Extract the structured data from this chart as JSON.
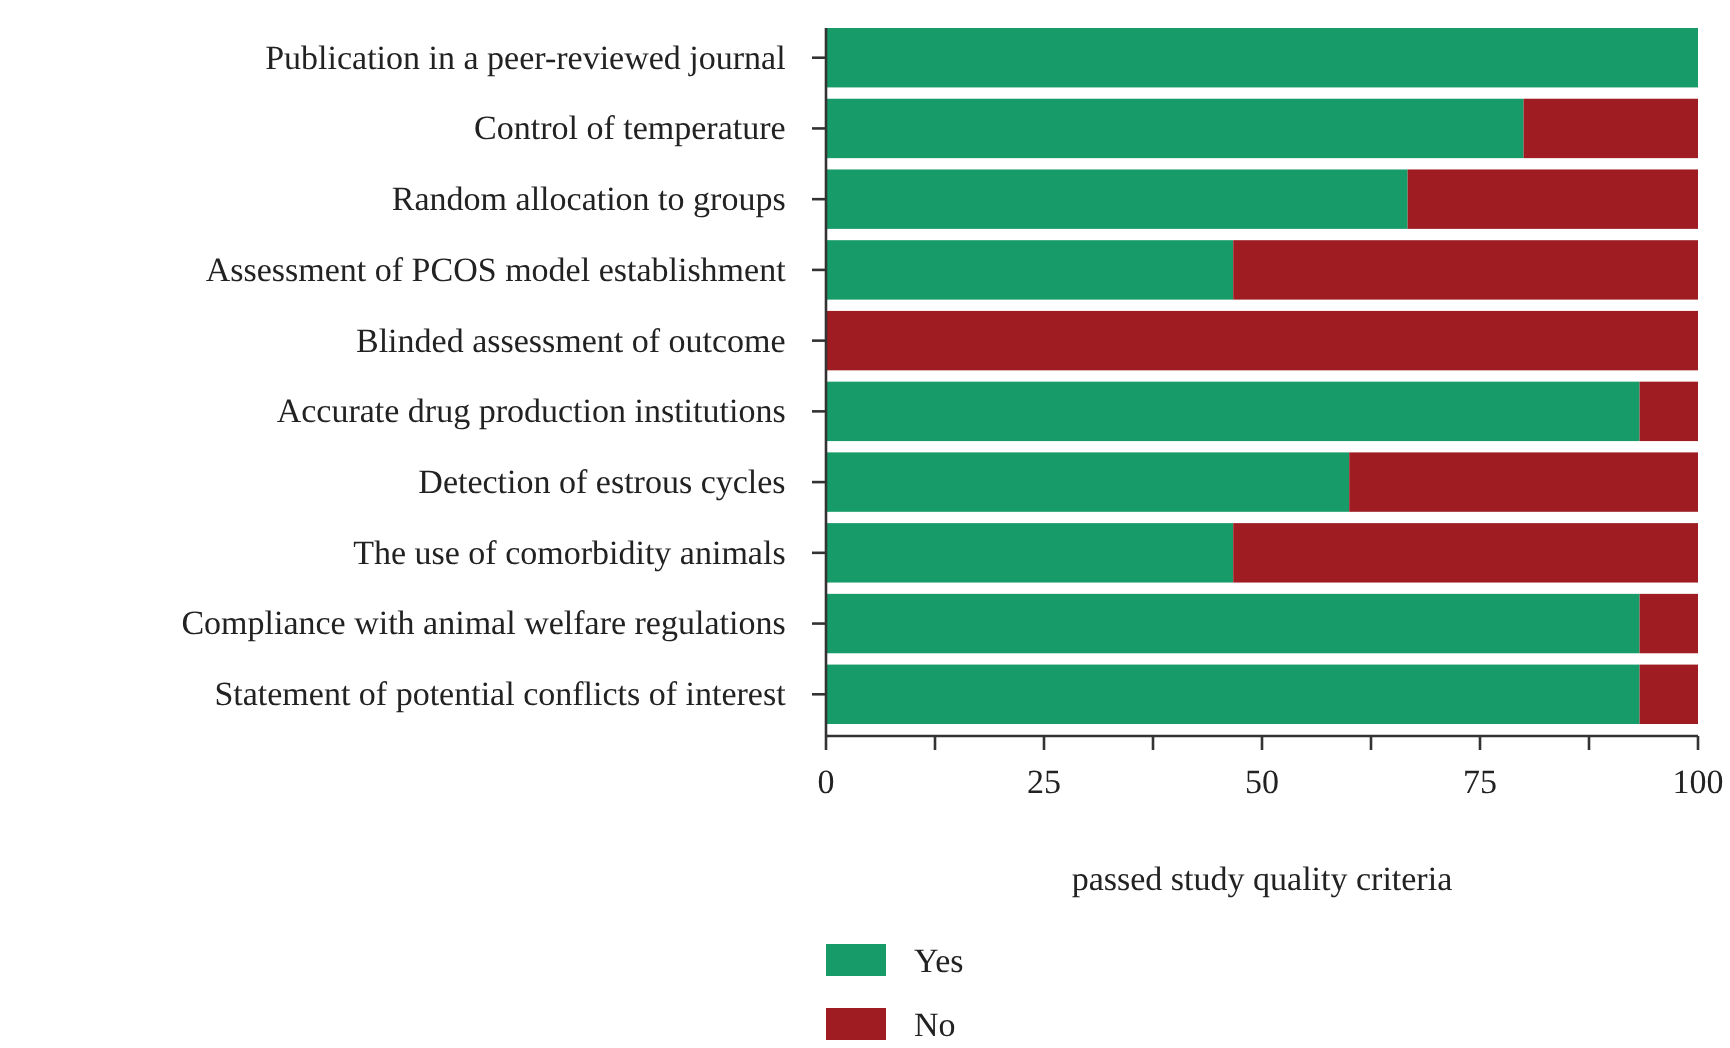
{
  "chart_data": {
    "type": "bar",
    "orientation": "horizontal",
    "stacked": true,
    "categories": [
      "Publication in a peer-reviewed journal",
      "Control of temperature",
      "Random allocation to groups",
      "Assessment of PCOS model establishment",
      "Blinded assessment of outcome",
      "Accurate drug production institutions",
      "Detection of estrous cycles",
      "The use of comorbidity animals",
      "Compliance with animal welfare regulations",
      "Statement of potential conflicts of interest"
    ],
    "series": [
      {
        "name": "Yes",
        "color": "#179b69",
        "values": [
          100,
          80,
          66.7,
          46.7,
          0,
          93.3,
          60,
          46.7,
          93.3,
          93.3
        ]
      },
      {
        "name": "No",
        "color": "#9e1c22",
        "values": [
          0,
          20,
          33.3,
          53.3,
          100,
          6.7,
          40,
          53.3,
          6.7,
          6.7
        ]
      }
    ],
    "xlim": [
      0,
      100
    ],
    "xticks": [
      0,
      {
        "value": 12.5,
        "label": null
      },
      25,
      {
        "value": 37.5,
        "label": null
      },
      50,
      {
        "value": 62.5,
        "label": null
      },
      75,
      {
        "value": 87.5,
        "label": null
      },
      100
    ],
    "xlabel": "passed study quality criteria",
    "legend": "bottom",
    "grid": false
  }
}
